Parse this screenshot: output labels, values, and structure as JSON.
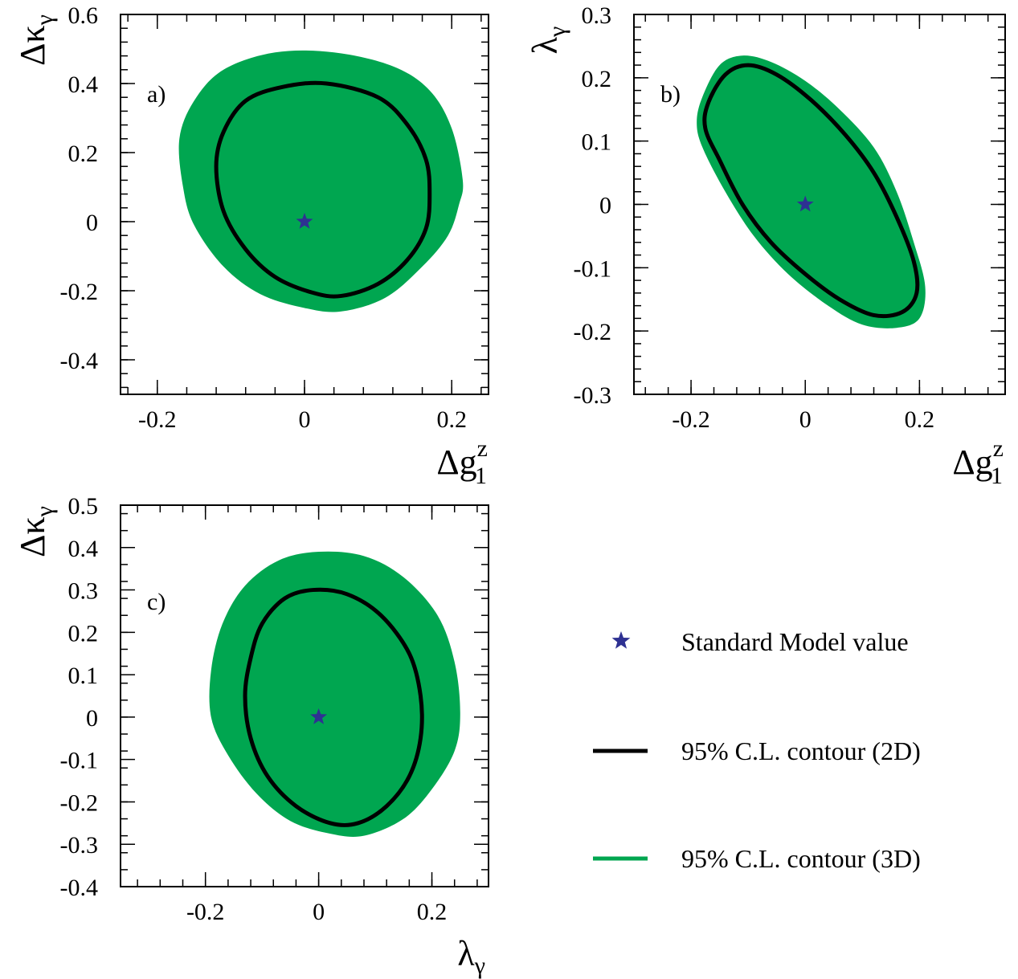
{
  "chart_data": [
    {
      "type": "area",
      "panel_label": "a)",
      "xlabel": {
        "base": "Δg",
        "sup": "z",
        "sub": "1"
      },
      "ylabel": {
        "base": "Δκ",
        "sub": "γ"
      },
      "xlim": [
        -0.25,
        0.25
      ],
      "ylim": [
        -0.5,
        0.6
      ],
      "xticks": [
        -0.2,
        0,
        0.2
      ],
      "xtick_labels": [
        "-0.2",
        "0",
        "0.2"
      ],
      "yticks": [
        -0.4,
        -0.2,
        0,
        0.2,
        0.4,
        0.6
      ],
      "ytick_labels": [
        "-0.4",
        "-0.2",
        "0",
        "0.2",
        "0.4",
        "0.6"
      ],
      "series": [
        {
          "name": "95% C.L. contour (3D)",
          "kind": "filled-region",
          "points": [
            [
              0.215,
              0.12
            ],
            [
              0.2,
              0.27
            ],
            [
              0.17,
              0.38
            ],
            [
              0.12,
              0.45
            ],
            [
              0.04,
              0.49
            ],
            [
              -0.04,
              0.49
            ],
            [
              -0.11,
              0.44
            ],
            [
              -0.15,
              0.35
            ],
            [
              -0.17,
              0.24
            ],
            [
              -0.165,
              0.1
            ],
            [
              -0.15,
              -0.01
            ],
            [
              -0.11,
              -0.13
            ],
            [
              -0.06,
              -0.21
            ],
            [
              0.0,
              -0.25
            ],
            [
              0.05,
              -0.26
            ],
            [
              0.11,
              -0.22
            ],
            [
              0.16,
              -0.13
            ],
            [
              0.195,
              -0.04
            ],
            [
              0.21,
              0.05
            ]
          ]
        },
        {
          "name": "95% C.L. contour (2D)",
          "kind": "line",
          "points": [
            [
              0.17,
              0.08
            ],
            [
              0.165,
              0.18
            ],
            [
              0.14,
              0.28
            ],
            [
              0.1,
              0.36
            ],
            [
              0.03,
              0.4
            ],
            [
              -0.03,
              0.39
            ],
            [
              -0.08,
              0.35
            ],
            [
              -0.11,
              0.26
            ],
            [
              -0.12,
              0.16
            ],
            [
              -0.11,
              0.03
            ],
            [
              -0.08,
              -0.08
            ],
            [
              -0.04,
              -0.16
            ],
            [
              0.01,
              -0.205
            ],
            [
              0.05,
              -0.215
            ],
            [
              0.1,
              -0.18
            ],
            [
              0.14,
              -0.11
            ],
            [
              0.165,
              -0.02
            ]
          ]
        },
        {
          "name": "Standard Model value",
          "kind": "point",
          "points": [
            [
              0,
              0
            ]
          ]
        }
      ]
    },
    {
      "type": "area",
      "panel_label": "b)",
      "xlabel": {
        "base": "Δg",
        "sup": "z",
        "sub": "1"
      },
      "ylabel": {
        "base": "λ",
        "sub": "γ"
      },
      "xlim": [
        -0.3,
        0.35
      ],
      "ylim": [
        -0.3,
        0.3
      ],
      "xticks": [
        -0.2,
        0,
        0.2
      ],
      "xtick_labels": [
        "-0.2",
        "0",
        "0.2"
      ],
      "yticks": [
        -0.3,
        -0.2,
        -0.1,
        0,
        0.1,
        0.2,
        0.3
      ],
      "ytick_labels": [
        "-0.3",
        "-0.2",
        "-0.1",
        "0",
        "0.1",
        "0.2",
        "0.3"
      ],
      "series": [
        {
          "name": "95% C.L. contour (3D)",
          "kind": "filled-region",
          "points": [
            [
              -0.18,
              0.17
            ],
            [
              -0.15,
              0.22
            ],
            [
              -0.11,
              0.235
            ],
            [
              -0.06,
              0.225
            ],
            [
              0.0,
              0.195
            ],
            [
              0.06,
              0.15
            ],
            [
              0.12,
              0.09
            ],
            [
              0.16,
              0.02
            ],
            [
              0.19,
              -0.06
            ],
            [
              0.21,
              -0.13
            ],
            [
              0.2,
              -0.18
            ],
            [
              0.16,
              -0.195
            ],
            [
              0.1,
              -0.19
            ],
            [
              0.04,
              -0.16
            ],
            [
              -0.03,
              -0.11
            ],
            [
              -0.09,
              -0.05
            ],
            [
              -0.14,
              0.02
            ],
            [
              -0.18,
              0.09
            ],
            [
              -0.19,
              0.13
            ]
          ]
        },
        {
          "name": "95% C.L. contour (2D)",
          "kind": "line",
          "points": [
            [
              -0.17,
              0.16
            ],
            [
              -0.14,
              0.205
            ],
            [
              -0.1,
              0.22
            ],
            [
              -0.05,
              0.205
            ],
            [
              0.01,
              0.165
            ],
            [
              0.07,
              0.11
            ],
            [
              0.12,
              0.05
            ],
            [
              0.16,
              -0.02
            ],
            [
              0.19,
              -0.09
            ],
            [
              0.195,
              -0.14
            ],
            [
              0.17,
              -0.17
            ],
            [
              0.12,
              -0.175
            ],
            [
              0.06,
              -0.15
            ],
            [
              0.0,
              -0.11
            ],
            [
              -0.06,
              -0.06
            ],
            [
              -0.11,
              0.0
            ],
            [
              -0.15,
              0.07
            ],
            [
              -0.175,
              0.12
            ]
          ]
        },
        {
          "name": "Standard Model value",
          "kind": "point",
          "points": [
            [
              0,
              0
            ]
          ]
        }
      ]
    },
    {
      "type": "area",
      "panel_label": "c)",
      "xlabel": {
        "base": "λ",
        "sub": "γ"
      },
      "ylabel": {
        "base": "Δκ",
        "sub": "γ"
      },
      "xlim": [
        -0.35,
        0.3
      ],
      "ylim": [
        -0.4,
        0.5
      ],
      "xticks": [
        -0.2,
        0,
        0.2
      ],
      "xtick_labels": [
        "-0.2",
        "0",
        "0.2"
      ],
      "yticks": [
        -0.4,
        -0.3,
        -0.2,
        -0.1,
        0,
        0.1,
        0.2,
        0.3,
        0.4,
        0.5
      ],
      "ytick_labels": [
        "-0.4",
        "-0.3",
        "-0.2",
        "-0.1",
        "0",
        "0.1",
        "0.2",
        "0.3",
        "0.4",
        "0.5"
      ],
      "series": [
        {
          "name": "95% C.L. contour (3D)",
          "kind": "filled-region",
          "points": [
            [
              0.25,
              0.01
            ],
            [
              0.24,
              0.13
            ],
            [
              0.21,
              0.24
            ],
            [
              0.15,
              0.33
            ],
            [
              0.08,
              0.38
            ],
            [
              0.0,
              0.39
            ],
            [
              -0.07,
              0.37
            ],
            [
              -0.13,
              0.31
            ],
            [
              -0.17,
              0.22
            ],
            [
              -0.19,
              0.11
            ],
            [
              -0.19,
              0.0
            ],
            [
              -0.16,
              -0.09
            ],
            [
              -0.11,
              -0.18
            ],
            [
              -0.05,
              -0.245
            ],
            [
              0.02,
              -0.275
            ],
            [
              0.08,
              -0.28
            ],
            [
              0.15,
              -0.24
            ],
            [
              0.2,
              -0.17
            ],
            [
              0.24,
              -0.08
            ]
          ]
        },
        {
          "name": "95% C.L. contour (2D)",
          "kind": "line",
          "points": [
            [
              0.18,
              -0.05
            ],
            [
              0.18,
              0.05
            ],
            [
              0.16,
              0.15
            ],
            [
              0.11,
              0.24
            ],
            [
              0.05,
              0.29
            ],
            [
              -0.01,
              0.3
            ],
            [
              -0.06,
              0.28
            ],
            [
              -0.1,
              0.22
            ],
            [
              -0.12,
              0.14
            ],
            [
              -0.13,
              0.05
            ],
            [
              -0.12,
              -0.05
            ],
            [
              -0.09,
              -0.14
            ],
            [
              -0.04,
              -0.21
            ],
            [
              0.02,
              -0.25
            ],
            [
              0.07,
              -0.25
            ],
            [
              0.12,
              -0.21
            ],
            [
              0.16,
              -0.14
            ]
          ]
        },
        {
          "name": "Standard Model value",
          "kind": "point",
          "points": [
            [
              0,
              0
            ]
          ]
        }
      ]
    }
  ],
  "legend": [
    {
      "symbol": "star",
      "label": "Standard Model value",
      "color": "#2e3192"
    },
    {
      "symbol": "black-line",
      "label": "95% C.L. contour (2D)",
      "color": "#000000"
    },
    {
      "symbol": "green-line",
      "label": "95% C.L. contour (3D)",
      "color": "#00a650"
    }
  ],
  "colors": {
    "fill_3d": "#00a650",
    "line_2d": "#000000",
    "sm_star": "#2e3192"
  }
}
